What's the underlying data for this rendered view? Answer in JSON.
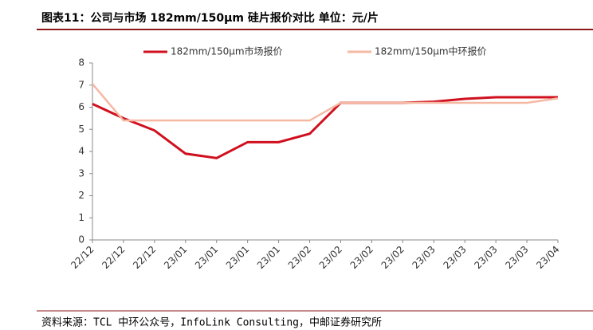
{
  "chart_data": {
    "type": "line",
    "title": "图表11：公司与市场 182mm/150μm 硅片报价对比  单位：元/片",
    "source": "资料来源：TCL 中环公众号，InfoLink Consulting，中邮证券研究所",
    "categories": [
      "22/12",
      "22/12",
      "22/12",
      "23/01",
      "23/01",
      "23/01",
      "23/01",
      "23/02",
      "23/02",
      "23/02",
      "23/02",
      "23/03",
      "23/03",
      "23/03",
      "23/03",
      "23/04"
    ],
    "series": [
      {
        "name": "182mm/150μm市场报价",
        "color": "#d0101e",
        "values": [
          6.15,
          5.5,
          4.95,
          3.9,
          3.7,
          4.42,
          4.42,
          4.8,
          6.2,
          6.2,
          6.2,
          6.25,
          6.38,
          6.45,
          6.45,
          6.45
        ]
      },
      {
        "name": "182mm/150μm中环报价",
        "color": "#f5b9a3",
        "values": [
          7.05,
          5.4,
          5.4,
          5.4,
          5.4,
          5.4,
          5.4,
          5.4,
          6.2,
          6.2,
          6.2,
          6.2,
          6.2,
          6.2,
          6.2,
          6.4
        ]
      }
    ],
    "ylim": [
      0,
      8
    ],
    "yticks": [
      0,
      1,
      2,
      3,
      4,
      5,
      6,
      7,
      8
    ],
    "legend": "top"
  }
}
